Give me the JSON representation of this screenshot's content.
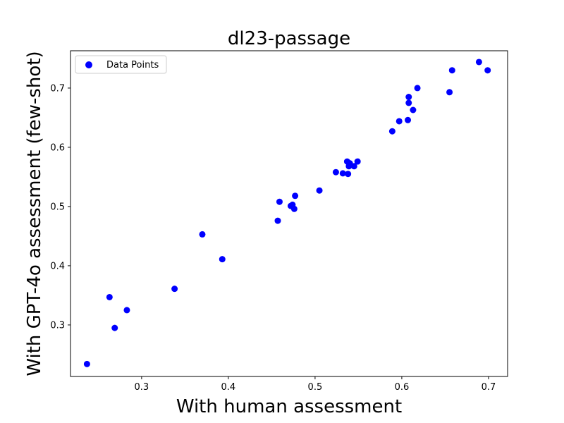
{
  "chart_data": {
    "type": "scatter",
    "title": "dl23-passage",
    "xlabel": "With human assessment",
    "ylabel": "With GPT-4o assessment (few-shot)",
    "xlim": [
      0.218,
      0.722
    ],
    "ylim": [
      0.213,
      0.763
    ],
    "xticks": [
      0.3,
      0.4,
      0.5,
      0.6,
      0.7
    ],
    "yticks": [
      0.3,
      0.4,
      0.5,
      0.6,
      0.7
    ],
    "grid": false,
    "legend": {
      "placement": "top-left",
      "entries": [
        "Data Points"
      ]
    },
    "series": [
      {
        "name": "Data Points",
        "color": "#0000ff",
        "points": [
          [
            0.237,
            0.234
          ],
          [
            0.263,
            0.347
          ],
          [
            0.269,
            0.295
          ],
          [
            0.283,
            0.325
          ],
          [
            0.338,
            0.361
          ],
          [
            0.37,
            0.453
          ],
          [
            0.393,
            0.411
          ],
          [
            0.457,
            0.476
          ],
          [
            0.459,
            0.508
          ],
          [
            0.472,
            0.501
          ],
          [
            0.474,
            0.503
          ],
          [
            0.476,
            0.496
          ],
          [
            0.477,
            0.518
          ],
          [
            0.505,
            0.527
          ],
          [
            0.524,
            0.558
          ],
          [
            0.532,
            0.556
          ],
          [
            0.537,
            0.576
          ],
          [
            0.538,
            0.555
          ],
          [
            0.539,
            0.568
          ],
          [
            0.54,
            0.573
          ],
          [
            0.545,
            0.568
          ],
          [
            0.549,
            0.576
          ],
          [
            0.589,
            0.627
          ],
          [
            0.597,
            0.644
          ],
          [
            0.607,
            0.646
          ],
          [
            0.608,
            0.675
          ],
          [
            0.608,
            0.685
          ],
          [
            0.613,
            0.663
          ],
          [
            0.618,
            0.7
          ],
          [
            0.655,
            0.693
          ],
          [
            0.658,
            0.73
          ],
          [
            0.689,
            0.744
          ],
          [
            0.699,
            0.73
          ]
        ]
      }
    ]
  }
}
